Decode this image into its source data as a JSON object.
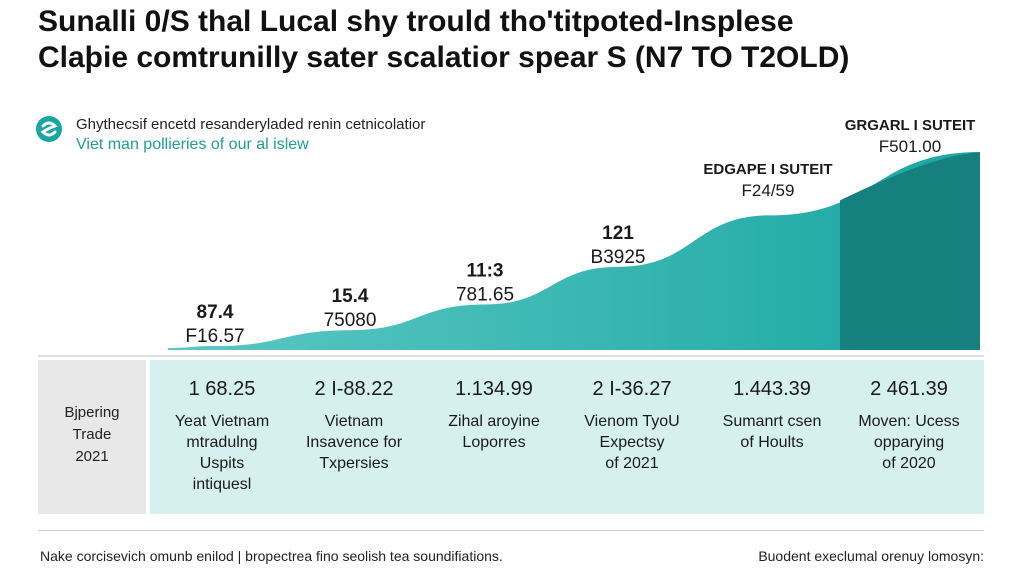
{
  "header": {
    "title_line1": "Sunalli 0/S thal Lucal shy trould tho'titpoted-Insplese",
    "title_line2": "Claþie comtrunilly sater scalatior spear S (N7 TO T2OLD)",
    "subtitle": "Ghythecsif encetd resanderyladed renin cetnicolatior",
    "subtitle2": "Viet man pollieries of our al islew"
  },
  "colors": {
    "teal": "#1aa6a2",
    "teal_dark": "#15807e",
    "teal_light": "#d6efef",
    "row_label_bg": "#e8e8e8"
  },
  "chart_data": {
    "type": "area",
    "title": "Sunalli 0/S thal Lucal shy trould tho'titpoted-Insplese",
    "ylim": [
      0,
      100
    ],
    "points": [
      {
        "label": "87.4",
        "sublabel": "F16.57",
        "x": 1,
        "y": 2
      },
      {
        "label": "15.4",
        "sublabel": "75080",
        "x": 2,
        "y": 10
      },
      {
        "label": "11:3",
        "sublabel": "781.65",
        "x": 3,
        "y": 23
      },
      {
        "label": "121",
        "sublabel": "B3925",
        "x": 4,
        "y": 42
      },
      {
        "label": "EDGAPE I SUTEIT",
        "sublabel": "F24/59",
        "x": 5,
        "y": 68
      },
      {
        "label": "GRGARL I SUTEIT",
        "sublabel": "F501.00",
        "x": 6,
        "y": 100
      }
    ]
  },
  "table": {
    "row_label_lines": [
      "Bjpering",
      "Trade",
      "2021"
    ],
    "columns": [
      {
        "value": "1 68.25",
        "lines": [
          "Yeat Vietnam",
          "mtradulng",
          "Uspits",
          "intiquesl"
        ]
      },
      {
        "value": "2 I-88.22",
        "lines": [
          "Vietnam",
          "Insavence for",
          "Txpersies"
        ]
      },
      {
        "value": "1.134.99",
        "lines": [
          "Zihal aroyine",
          "Loporres"
        ]
      },
      {
        "value": "2 I-36.27",
        "lines": [
          "Vienom TyoU",
          "Expectsy",
          "of 2021"
        ]
      },
      {
        "value": "1.443.39",
        "lines": [
          "Sumanrt csen",
          "of Hoults"
        ]
      },
      {
        "value": "2 461.39",
        "lines": [
          "Moven: Ucess",
          "opparying",
          "of 2020"
        ]
      }
    ]
  },
  "footer": {
    "left": "Nake corcisevich omunb enilod | bropectrea fino seolish tea soundifiations.",
    "right": "Buodent execlumal orenuy lomosyn:"
  }
}
